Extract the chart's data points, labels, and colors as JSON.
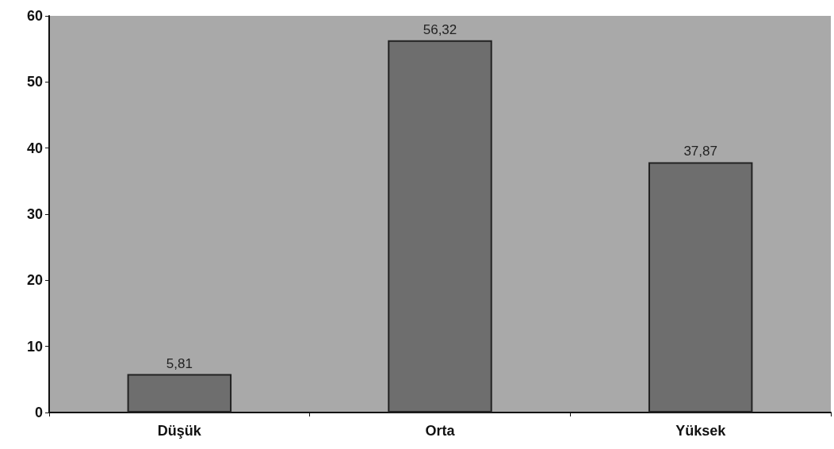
{
  "chart_data": {
    "type": "bar",
    "categories": [
      "Düşük",
      "Orta",
      "Yüksek"
    ],
    "values": [
      5.81,
      56.32,
      37.87
    ],
    "value_labels": [
      "5,81",
      "56,32",
      "37,87"
    ],
    "color": "#6e6e6e",
    "ylim": [
      0,
      60
    ],
    "yticks": [
      0,
      10,
      20,
      30,
      40,
      50,
      60
    ],
    "grid": false
  }
}
